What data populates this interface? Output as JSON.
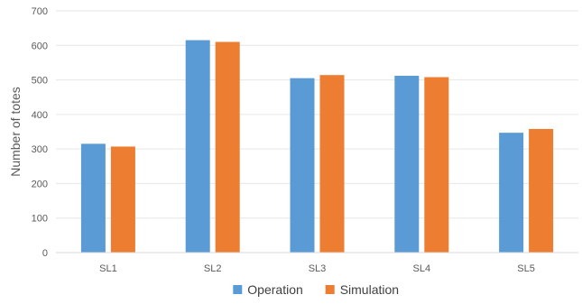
{
  "chart_data": {
    "type": "bar",
    "title": "",
    "xlabel": "",
    "ylabel": "Number of totes",
    "categories": [
      "SL1",
      "SL2",
      "SL3",
      "SL4",
      "SL5"
    ],
    "series": [
      {
        "name": "Operation",
        "color": "#5B9BD5",
        "values": [
          315,
          615,
          505,
          512,
          347
        ]
      },
      {
        "name": "Simulation",
        "color": "#ED7D31",
        "values": [
          307,
          610,
          514,
          508,
          358
        ]
      }
    ],
    "ylim": [
      0,
      700
    ],
    "yticks": [
      0,
      100,
      200,
      300,
      400,
      500,
      600,
      700
    ],
    "grid": true,
    "legend_position": "bottom"
  }
}
